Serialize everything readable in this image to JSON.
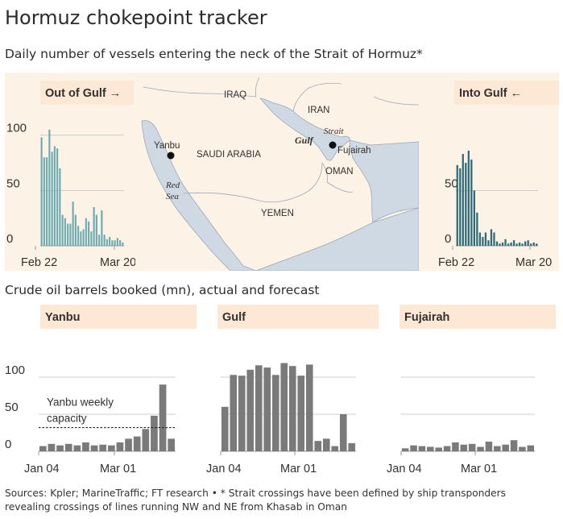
{
  "title": "Hormuz chokepoint tracker",
  "subtitle": "Daily number of vessels entering the neck of the Strait of Hormuz*",
  "section2_title": "Crude oil barrels booked (mn), actual and forecast",
  "footnote": [
    "Sources: Kpler; MarineTraffic; FT research • * Strait crossings have been defined by ship transponders",
    "revealing crossings of lines running NW and NE from Khasab in Oman"
  ],
  "colors": {
    "teal": "#6aabb0",
    "dark_teal": "#2e6c7a",
    "gray_bar": "#7a7a7a",
    "header_bg": "#fde8d5",
    "panel_bg": "#fdf2e6",
    "grid": "#bfbfbf",
    "land": "#f4efe8",
    "water": "#cfd9e3"
  },
  "map": {
    "labels": {
      "iraq": "IRAQ",
      "iran": "IRAN",
      "saudi": "SAUDI ARABIA",
      "oman": "OMAN",
      "yemen": "YEMEN",
      "red": "Red",
      "sea": "Sea",
      "gulf": "Gulf",
      "strait": "Strait",
      "yanbu": "Yanbu",
      "fujairah": "Fujairah"
    }
  },
  "chart_data": [
    {
      "id": "out",
      "type": "bar",
      "title": "Out of Gulf →",
      "x_labels": [
        "Feb 22",
        "Mar 20"
      ],
      "y_ticks": [
        0,
        50,
        100
      ],
      "ylim": [
        0,
        110
      ],
      "values": [
        98,
        80,
        80,
        105,
        85,
        90,
        88,
        70,
        28,
        25,
        20,
        20,
        40,
        28,
        18,
        13,
        15,
        25,
        22,
        13,
        35,
        28,
        10,
        32,
        10,
        6,
        8,
        5,
        5,
        7,
        5,
        3
      ]
    },
    {
      "id": "into",
      "type": "bar",
      "title": "Into Gulf ←",
      "x_labels": [
        "Feb 22",
        "Mar 20"
      ],
      "y_ticks": [
        0,
        50
      ],
      "ylim": [
        0,
        110
      ],
      "values": [
        73,
        70,
        83,
        75,
        86,
        78,
        50,
        30,
        12,
        8,
        12,
        5,
        15,
        12,
        4,
        2,
        3,
        6,
        2,
        3,
        5,
        2,
        3,
        2,
        4,
        5,
        2,
        3,
        2
      ]
    },
    {
      "id": "yanbu",
      "type": "bar",
      "title": "Yanbu",
      "x_labels": [
        "Jan 04",
        "Mar 01"
      ],
      "y_ticks": [
        0,
        50,
        100
      ],
      "ylim": [
        0,
        125
      ],
      "values": [
        7,
        10,
        8,
        10,
        8,
        12,
        8,
        9,
        8,
        12,
        17,
        20,
        30,
        48,
        90,
        17
      ],
      "annotation": {
        "text": [
          "Yanbu weekly",
          "capacity"
        ],
        "value": 32
      }
    },
    {
      "id": "gulf",
      "type": "bar",
      "title": "Gulf",
      "x_labels": [
        "Jan 04",
        "Mar 01"
      ],
      "y_ticks": [],
      "ylim": [
        0,
        125
      ],
      "values": [
        60,
        103,
        102,
        110,
        116,
        113,
        103,
        119,
        115,
        102,
        117,
        14,
        17,
        7,
        50,
        11
      ]
    },
    {
      "id": "fujairah",
      "type": "bar",
      "title": "Fujairah",
      "x_labels": [
        "Jan 04",
        "Mar 01"
      ],
      "y_ticks": [],
      "ylim": [
        0,
        125
      ],
      "values": [
        4,
        8,
        7,
        6,
        5,
        7,
        12,
        9,
        10,
        6,
        13,
        7,
        9,
        15,
        6,
        8
      ]
    }
  ]
}
